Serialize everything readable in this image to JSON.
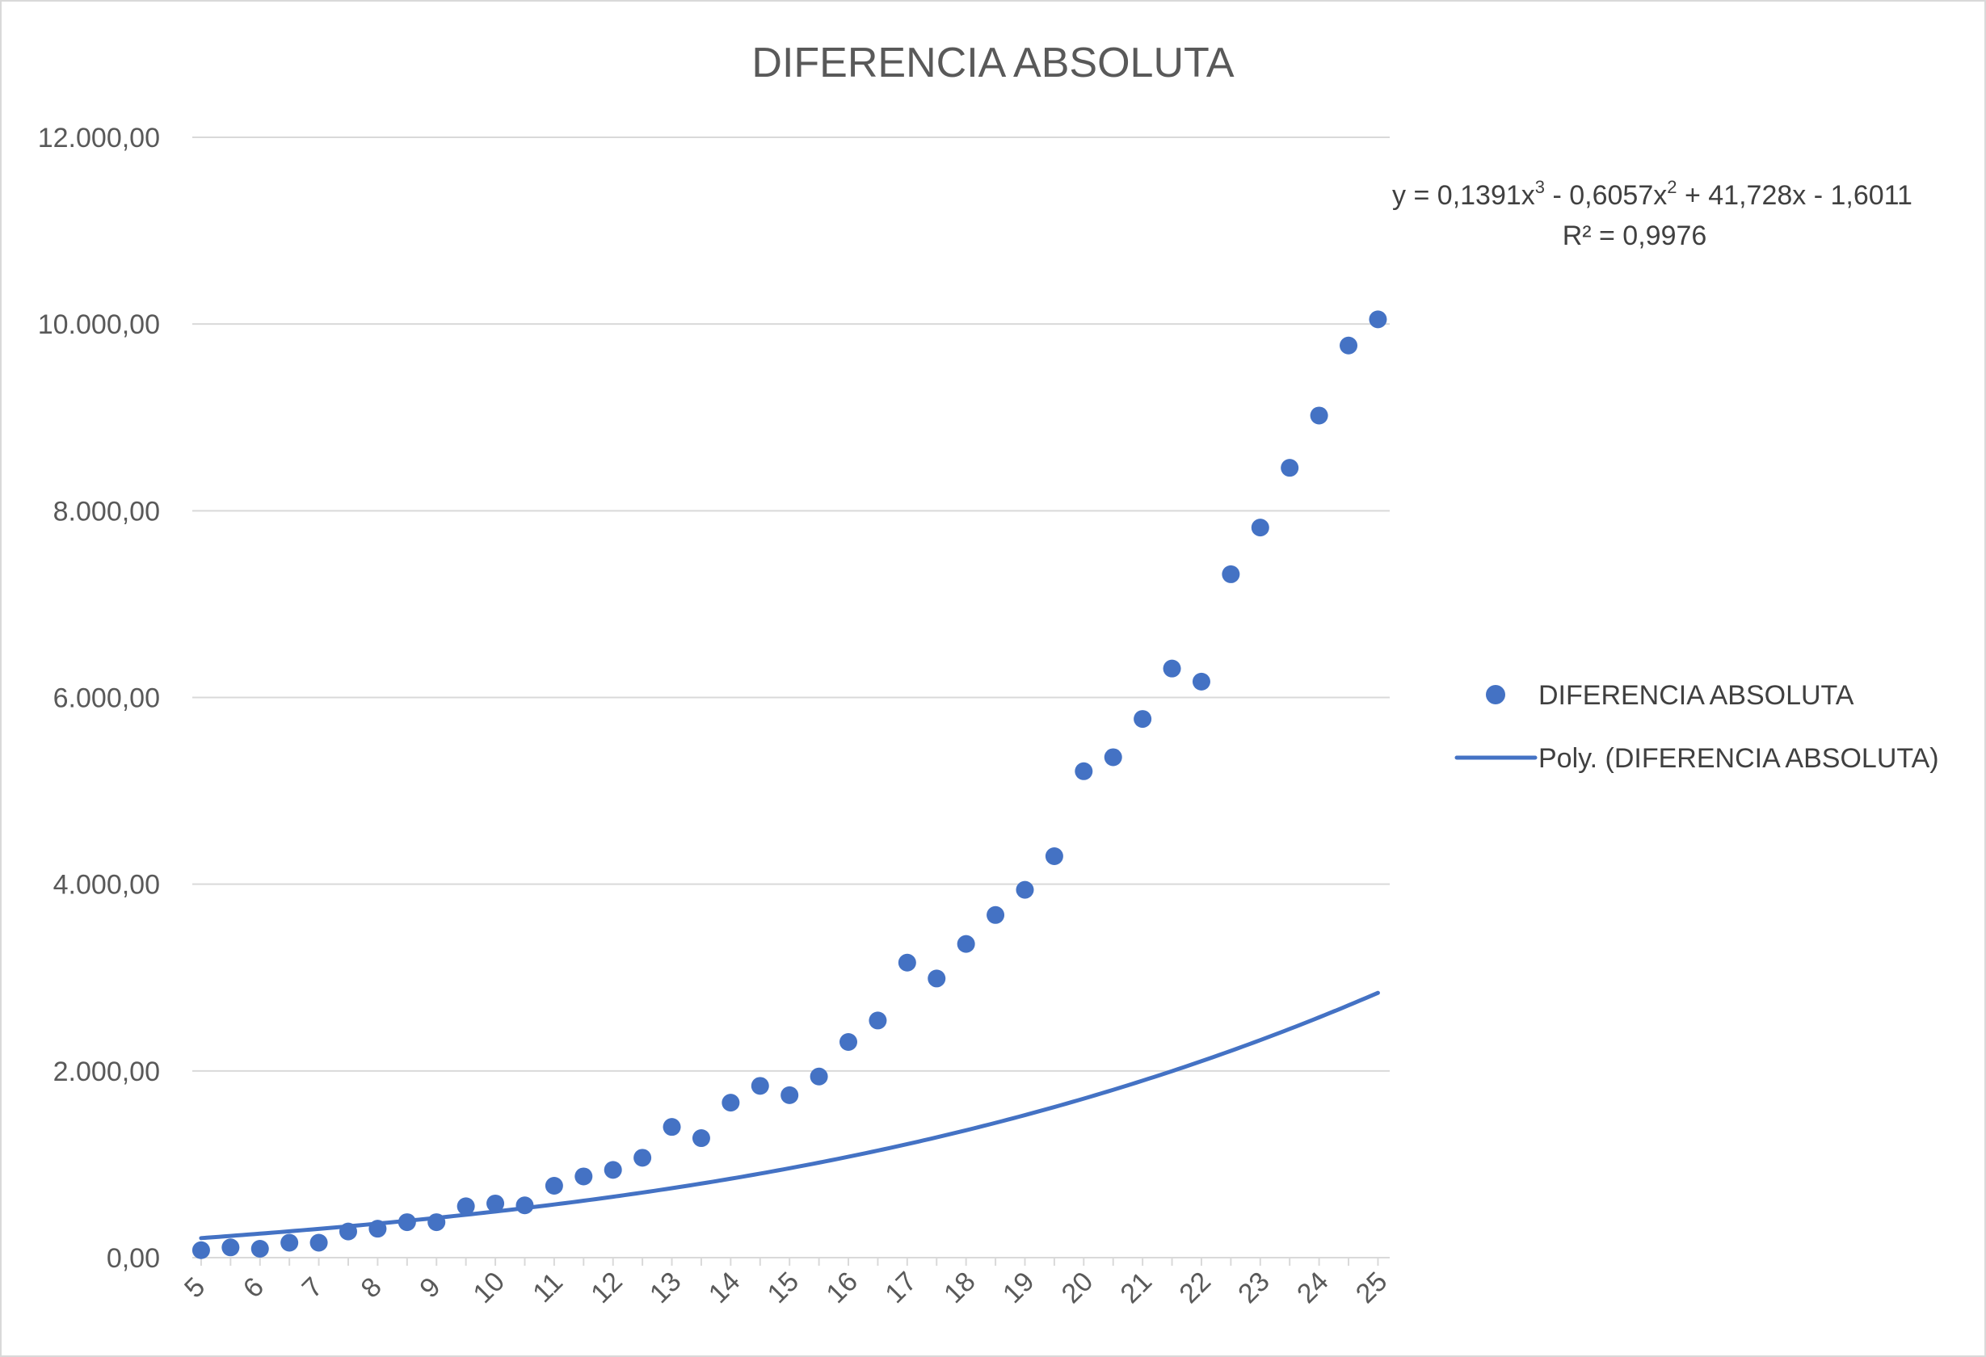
{
  "chart_data": {
    "type": "scatter",
    "title": "DIFERENCIA ABSOLUTA",
    "xlabel": "",
    "ylabel": "",
    "xlim": [
      4.85,
      25.2
    ],
    "ylim": [
      0,
      12000
    ],
    "y_ticks": [
      0,
      2000,
      4000,
      6000,
      8000,
      10000,
      12000
    ],
    "y_tick_labels": [
      "0,00",
      "2.000,00",
      "4.000,00",
      "6.000,00",
      "8.000,00",
      "10.000,00",
      "12.000,00"
    ],
    "x_ticks": [
      5,
      6,
      7,
      8,
      9,
      10,
      11,
      12,
      13,
      14,
      15,
      16,
      17,
      18,
      19,
      20,
      21,
      22,
      23,
      24,
      25
    ],
    "x_tick_labels": [
      "5",
      "6",
      "7",
      "8",
      "9",
      "10",
      "11",
      "12",
      "13",
      "14",
      "15",
      "16",
      "17",
      "18",
      "19",
      "20",
      "21",
      "22",
      "23",
      "24",
      "25"
    ],
    "grid": true,
    "legend_position": "right",
    "colors": {
      "series": "#4472C4",
      "grid": "#D9D9D9",
      "text": "#595959"
    },
    "series": [
      {
        "name": "DIFERENCIA ABSOLUTA",
        "points": [
          [
            5,
            80
          ],
          [
            5.5,
            110
          ],
          [
            6,
            95
          ],
          [
            6.5,
            160
          ],
          [
            7,
            160
          ],
          [
            7.5,
            280
          ],
          [
            8,
            310
          ],
          [
            8.5,
            380
          ],
          [
            9,
            380
          ],
          [
            9.5,
            550
          ],
          [
            10,
            580
          ],
          [
            10.5,
            560
          ],
          [
            11,
            770
          ],
          [
            11.5,
            870
          ],
          [
            12,
            940
          ],
          [
            12.5,
            1070
          ],
          [
            13,
            1400
          ],
          [
            13.5,
            1280
          ],
          [
            14,
            1660
          ],
          [
            14.5,
            1840
          ],
          [
            15,
            1740
          ],
          [
            15.5,
            1940
          ],
          [
            16,
            2310
          ],
          [
            16.5,
            2540
          ],
          [
            17,
            3160
          ],
          [
            17.5,
            2990
          ],
          [
            18,
            3360
          ],
          [
            18.5,
            3670
          ],
          [
            19,
            3940
          ],
          [
            19.5,
            4300
          ],
          [
            20,
            5210
          ],
          [
            20.5,
            5360
          ],
          [
            21,
            5770
          ],
          [
            21.5,
            6310
          ],
          [
            22,
            6170
          ],
          [
            22.5,
            7320
          ],
          [
            23,
            7820
          ],
          [
            23.5,
            8460
          ],
          [
            24,
            9020
          ],
          [
            24.5,
            9770
          ],
          [
            25,
            10050
          ]
        ]
      }
    ],
    "trendline": {
      "name": "Poly. (DIFERENCIA ABSOLUTA)",
      "type": "polynomial",
      "order": 3,
      "coefficients": [
        0.1391,
        -0.6057,
        41.728,
        -1.6011
      ],
      "equation_parts": [
        "y = 0,1391x",
        "3",
        " - 0,6057x",
        "2",
        " + 41,728x - 1,6011"
      ],
      "r_squared_label": "R² = 0,9976"
    }
  }
}
